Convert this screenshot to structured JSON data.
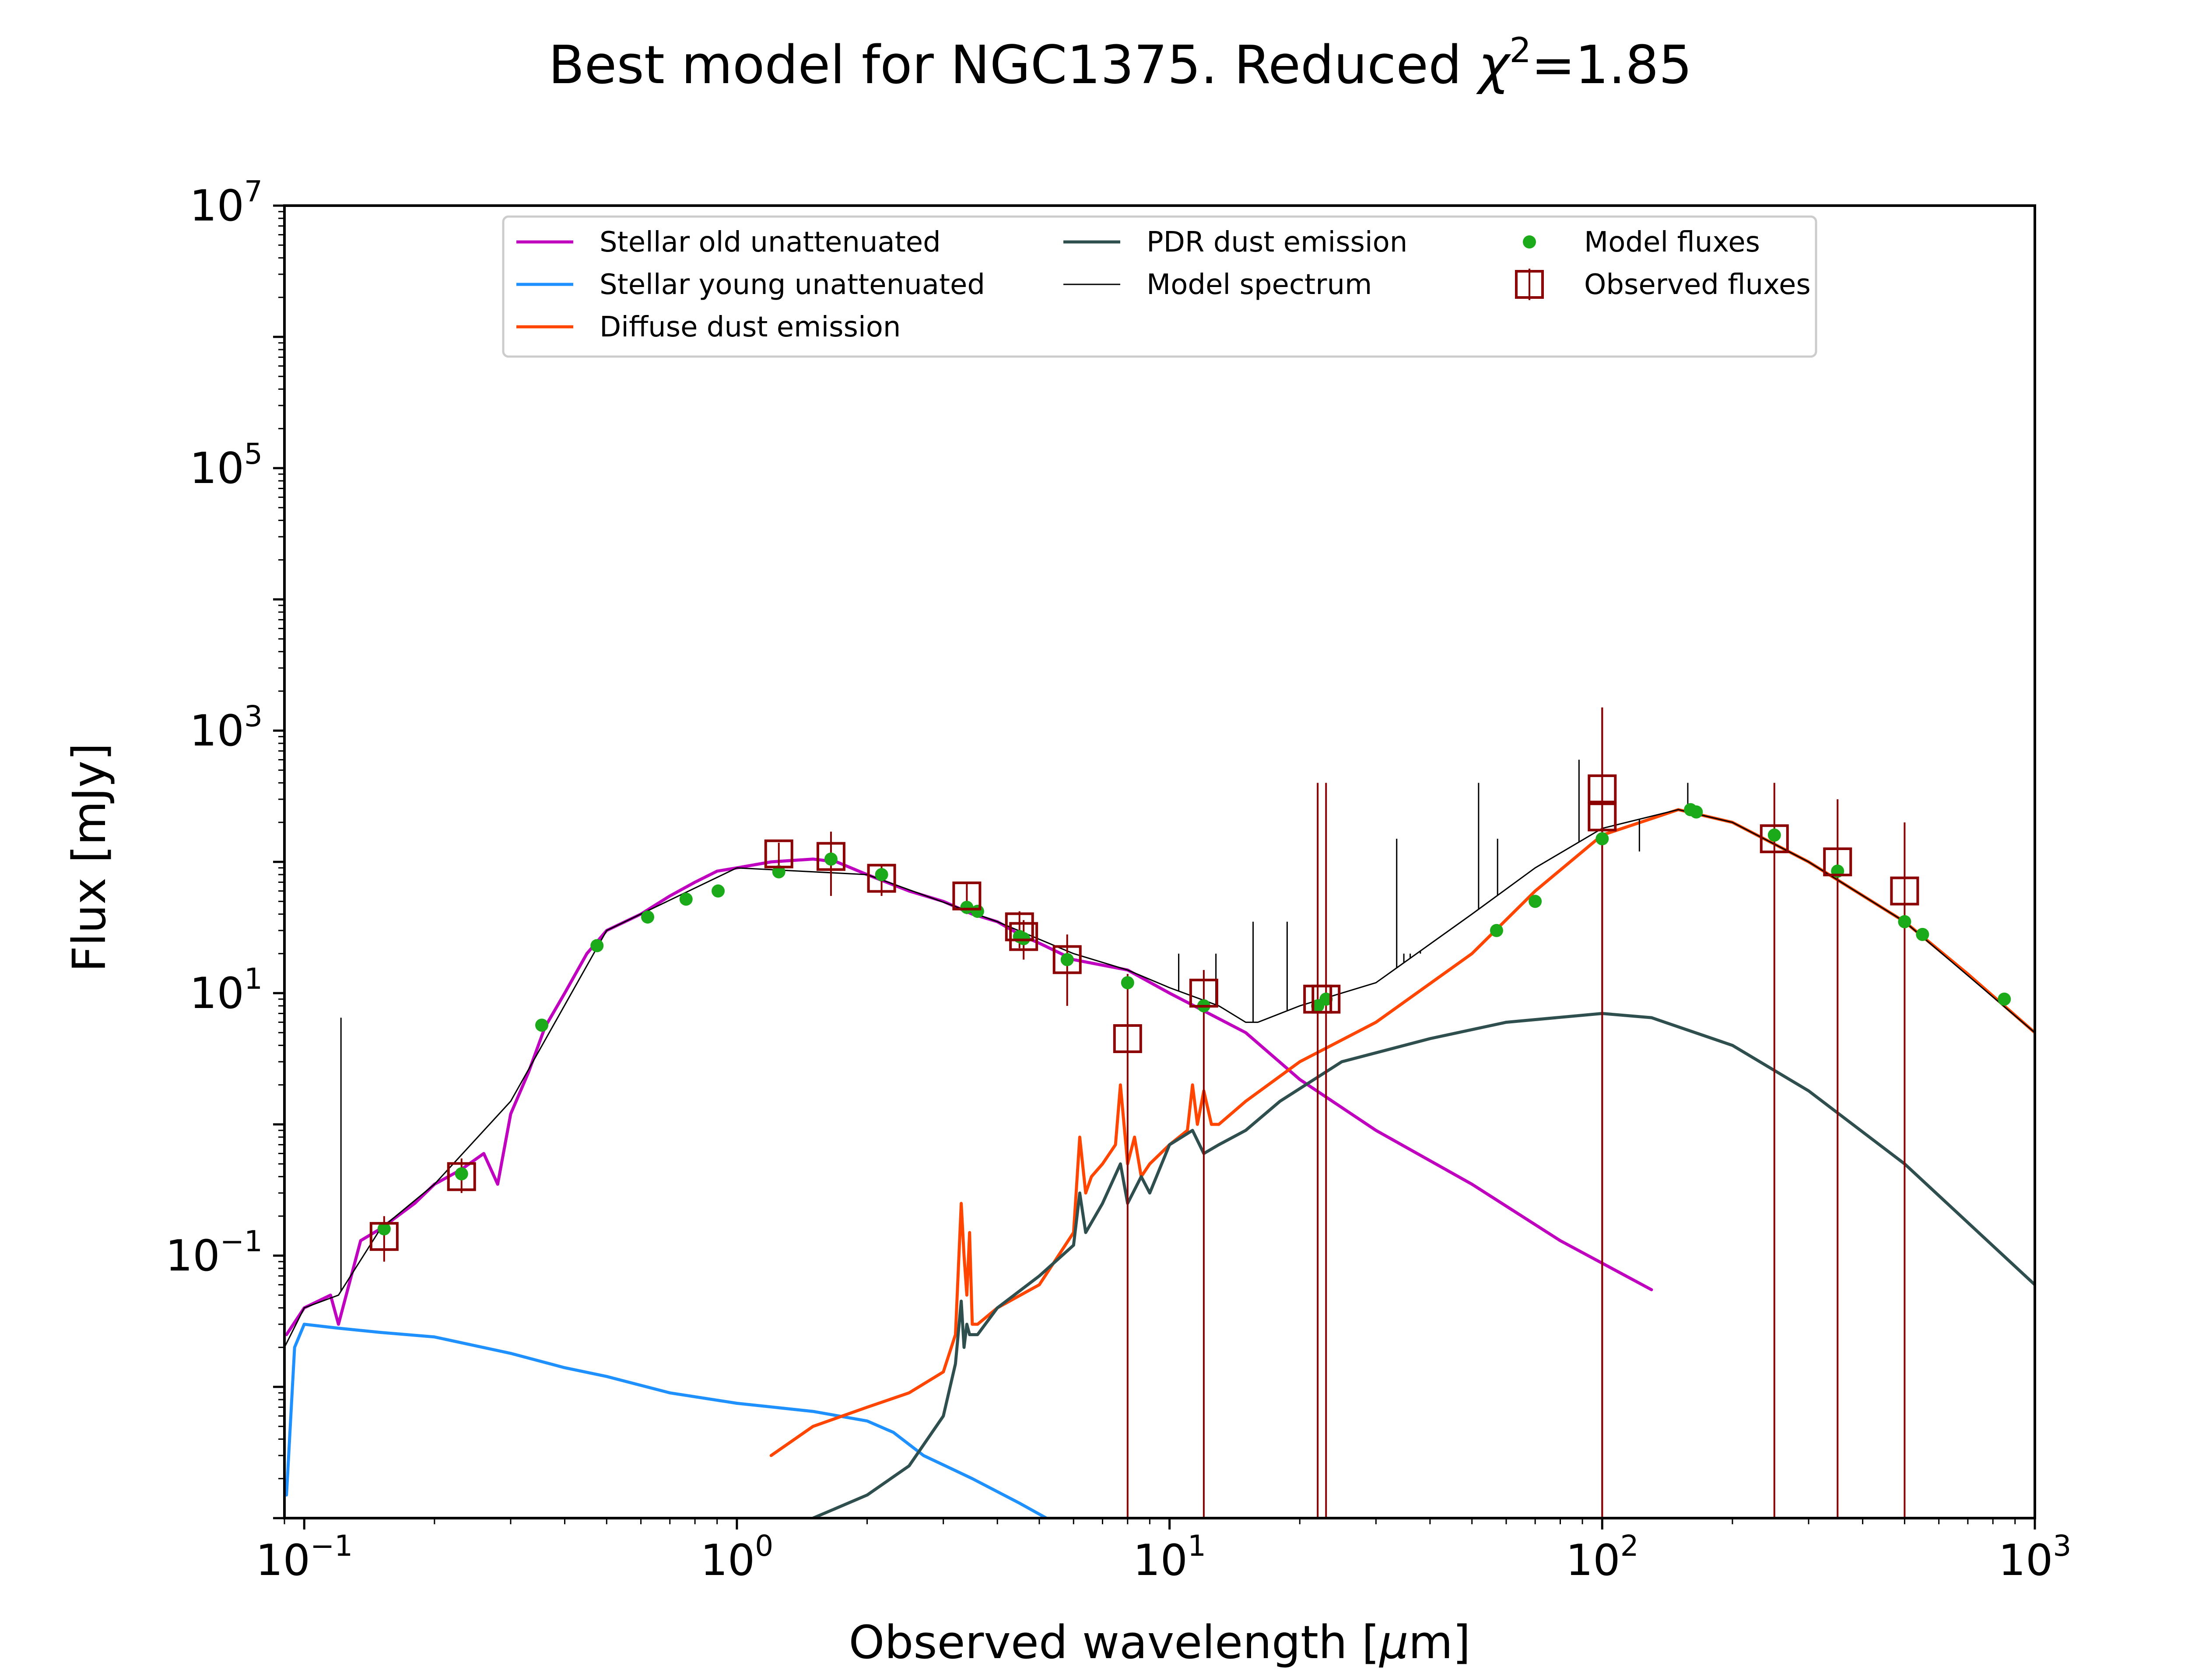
{
  "chart_data": {
    "type": "line",
    "title_prefix": "Best model for NGC1375. Reduced ",
    "title_chi": "χ",
    "title_exp": "2",
    "title_suffix": "=1.85",
    "xlabel_prefix": "Observed wavelength [",
    "xlabel_mu": "μ",
    "xlabel_suffix": "m]",
    "ylabel": "Flux [mJy]",
    "xscale": "log",
    "yscale": "log",
    "xlim": [
      0.09,
      1000
    ],
    "ylim": [
      0.001,
      10000000
    ],
    "x_ticks": [
      {
        "base": "10",
        "exp": "−1",
        "value": 0.1
      },
      {
        "base": "10",
        "exp": "0",
        "value": 1
      },
      {
        "base": "10",
        "exp": "1",
        "value": 10
      },
      {
        "base": "10",
        "exp": "2",
        "value": 100
      },
      {
        "base": "10",
        "exp": "3",
        "value": 1000
      }
    ],
    "y_ticks": [
      {
        "base": "10",
        "exp": "−1",
        "value": 0.1
      },
      {
        "base": "10",
        "exp": "1",
        "value": 10
      },
      {
        "base": "10",
        "exp": "3",
        "value": 1000
      },
      {
        "base": "10",
        "exp": "5",
        "value": 100000
      },
      {
        "base": "10",
        "exp": "7",
        "value": 10000000
      }
    ],
    "grid": false,
    "legend_position": "top-center",
    "legend": [
      {
        "label": "Stellar old unattenuated",
        "kind": "line",
        "color": "#bf00bf"
      },
      {
        "label": "Stellar young unattenuated",
        "kind": "line",
        "color": "#1e90ff"
      },
      {
        "label": "Diffuse dust emission",
        "kind": "line",
        "color": "#ff4500"
      },
      {
        "label": "PDR dust emission",
        "kind": "line",
        "color": "#2f4f4f"
      },
      {
        "label": "Model spectrum",
        "kind": "thinline",
        "color": "#000000"
      },
      {
        "label": "Model fluxes",
        "kind": "dot",
        "color": "#1aaa1a"
      },
      {
        "label": "Observed fluxes",
        "kind": "square",
        "color": "#8b0000"
      }
    ],
    "series": [
      {
        "name": "Stellar old unattenuated",
        "color": "#bf00bf",
        "x": [
          0.091,
          0.1,
          0.115,
          0.12,
          0.135,
          0.15,
          0.18,
          0.2,
          0.23,
          0.26,
          0.28,
          0.3,
          0.33,
          0.36,
          0.4,
          0.45,
          0.5,
          0.6,
          0.7,
          0.8,
          0.9,
          1.0,
          1.2,
          1.5,
          1.7,
          2.0,
          2.5,
          3.0,
          3.5,
          4.0,
          4.5,
          5.0,
          6.0,
          8.0,
          10,
          15,
          20,
          30,
          50,
          80,
          130
        ],
        "y": [
          0.025,
          0.04,
          0.05,
          0.03,
          0.13,
          0.16,
          0.25,
          0.35,
          0.45,
          0.6,
          0.35,
          1.2,
          2.5,
          5.5,
          10,
          20,
          30,
          40,
          55,
          70,
          85,
          90,
          100,
          105,
          100,
          80,
          60,
          50,
          40,
          35,
          28,
          24,
          18,
          15,
          10,
          5,
          2.2,
          0.9,
          0.35,
          0.13,
          0.055
        ]
      },
      {
        "name": "Stellar young unattenuated",
        "color": "#1e90ff",
        "x": [
          0.091,
          0.095,
          0.1,
          0.12,
          0.15,
          0.2,
          0.3,
          0.4,
          0.5,
          0.7,
          1.0,
          1.5,
          2.0,
          2.3,
          2.7,
          3.5,
          4.5,
          5.5
        ],
        "y": [
          0.0015,
          0.02,
          0.03,
          0.028,
          0.026,
          0.024,
          0.018,
          0.014,
          0.012,
          0.009,
          0.0075,
          0.0065,
          0.0055,
          0.0045,
          0.003,
          0.002,
          0.0013,
          0.0009
        ]
      },
      {
        "name": "Diffuse dust emission",
        "color": "#ff4500",
        "x": [
          1.2,
          1.5,
          2.0,
          2.5,
          3.0,
          3.2,
          3.3,
          3.35,
          3.4,
          3.45,
          3.5,
          3.6,
          4.0,
          5.0,
          6.0,
          6.2,
          6.4,
          6.6,
          7.0,
          7.5,
          7.7,
          8.0,
          8.3,
          8.6,
          9.0,
          10.0,
          11.0,
          11.3,
          11.6,
          12.0,
          12.5,
          13.0,
          15.0,
          20,
          30,
          50,
          70,
          100,
          150,
          200,
          300,
          500,
          700,
          1000
        ],
        "y": [
          0.003,
          0.005,
          0.007,
          0.009,
          0.013,
          0.025,
          0.25,
          0.1,
          0.05,
          0.15,
          0.03,
          0.03,
          0.04,
          0.06,
          0.15,
          0.8,
          0.3,
          0.4,
          0.5,
          0.7,
          2.0,
          0.5,
          0.8,
          0.4,
          0.5,
          0.7,
          0.9,
          2.0,
          1.0,
          1.8,
          1.0,
          1.0,
          1.5,
          3.0,
          6,
          20,
          60,
          160,
          250,
          200,
          100,
          35,
          14,
          5
        ]
      },
      {
        "name": "PDR dust emission",
        "color": "#2f4f4f",
        "x": [
          1.5,
          2.0,
          2.5,
          3.0,
          3.2,
          3.3,
          3.35,
          3.4,
          3.45,
          3.6,
          4.0,
          5.0,
          6.0,
          6.2,
          6.4,
          7.0,
          7.7,
          8.0,
          8.6,
          9.0,
          10.0,
          11.3,
          12.0,
          13.0,
          15.0,
          18.0,
          25,
          40,
          60,
          100,
          130,
          200,
          300,
          500,
          1000
        ],
        "y": [
          0.001,
          0.0015,
          0.0025,
          0.006,
          0.015,
          0.045,
          0.02,
          0.03,
          0.025,
          0.025,
          0.04,
          0.07,
          0.12,
          0.3,
          0.15,
          0.25,
          0.5,
          0.25,
          0.4,
          0.3,
          0.7,
          0.9,
          0.6,
          0.7,
          0.9,
          1.5,
          3.0,
          4.5,
          6.0,
          7.0,
          6.5,
          4.0,
          1.8,
          0.5,
          0.06
        ]
      },
      {
        "name": "Model spectrum",
        "color": "#000000",
        "x": [
          0.09,
          0.1,
          0.12,
          0.15,
          0.2,
          0.3,
          0.5,
          1.0,
          2.0,
          4.0,
          6.0,
          8.0,
          10.0,
          13.0,
          15.0,
          16.0,
          20.0,
          30.0,
          50.0,
          70.0,
          100.0,
          150.0,
          200.0,
          300.0,
          500.0,
          1000.0
        ],
        "y": [
          0.02,
          0.04,
          0.05,
          0.16,
          0.35,
          1.5,
          30,
          90,
          80,
          35,
          20,
          15,
          11,
          8,
          6,
          6,
          8,
          12,
          40,
          90,
          180,
          250,
          200,
          100,
          35,
          5
        ]
      }
    ],
    "emission_lines": [
      {
        "x": 0.1216,
        "y": 6.5
      },
      {
        "x": 8.0,
        "y": 15
      },
      {
        "x": 10.5,
        "y": 20
      },
      {
        "x": 12.8,
        "y": 20
      },
      {
        "x": 15.6,
        "y": 35
      },
      {
        "x": 18.7,
        "y": 35
      },
      {
        "x": 22.0,
        "y": 30
      },
      {
        "x": 33.5,
        "y": 150
      },
      {
        "x": 34.8,
        "y": 20
      },
      {
        "x": 36.0,
        "y": 20
      },
      {
        "x": 38.0,
        "y": 20
      },
      {
        "x": 51.8,
        "y": 400
      },
      {
        "x": 57.3,
        "y": 150
      },
      {
        "x": 88.4,
        "y": 600
      },
      {
        "x": 121.9,
        "y": 120
      },
      {
        "x": 157.7,
        "y": 400
      }
    ],
    "model_fluxes": {
      "x": [
        0.153,
        0.231,
        0.354,
        0.475,
        0.622,
        0.763,
        0.905,
        1.25,
        1.65,
        2.16,
        3.4,
        3.6,
        4.5,
        4.6,
        5.8,
        8.0,
        12,
        22,
        23,
        57,
        70,
        100,
        160,
        165,
        250,
        350,
        500,
        550,
        850
      ],
      "y": [
        0.16,
        0.42,
        5.7,
        23,
        38,
        52,
        60,
        84,
        105,
        80,
        45,
        42,
        27,
        26,
        18,
        12,
        8,
        8,
        9,
        30,
        50,
        150,
        250,
        240,
        160,
        85,
        35,
        28,
        9
      ]
    },
    "observed_fluxes": {
      "x": [
        0.153,
        0.231,
        1.25,
        1.65,
        2.16,
        3.4,
        4.5,
        4.6,
        5.8,
        8.0,
        12,
        22,
        23,
        100,
        100,
        250,
        350,
        500
      ],
      "y": [
        0.14,
        0.4,
        115,
        110,
        75,
        55,
        32,
        27,
        18,
        4.5,
        10,
        9,
        9,
        220,
        360,
        150,
        100,
        60
      ],
      "err_low": [
        0.09,
        0.3,
        90,
        55,
        55,
        40,
        22,
        18,
        8,
        0.001,
        0.001,
        0.001,
        0.001,
        0.001,
        0.001,
        0.001,
        0.001,
        0.001
      ],
      "err_high": [
        0.2,
        0.55,
        140,
        170,
        95,
        70,
        42,
        36,
        28,
        14,
        15,
        400,
        400,
        1500,
        1500,
        400,
        300,
        200
      ]
    }
  }
}
